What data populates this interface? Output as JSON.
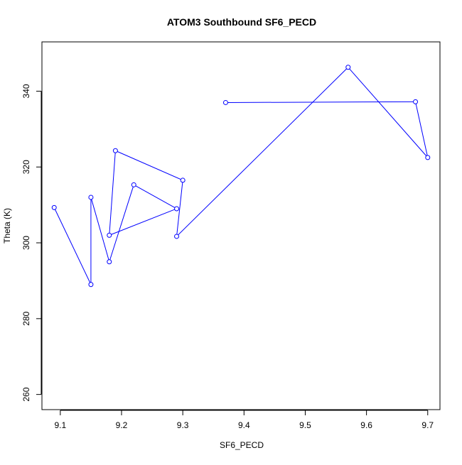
{
  "chart_data": {
    "type": "line",
    "title": "ATOM3 Southbound SF6_PECD",
    "xlabel": "SF6_PECD",
    "ylabel": "Theta (K)",
    "xlim": [
      9.07,
      9.72
    ],
    "ylim": [
      256,
      353
    ],
    "xticks": [
      9.1,
      9.2,
      9.3,
      9.4,
      9.5,
      9.6,
      9.7
    ],
    "xtick_labels": [
      "9.1",
      "9.2",
      "9.3",
      "9.4",
      "9.5",
      "9.6",
      "9.7"
    ],
    "yticks": [
      260,
      280,
      300,
      320,
      340
    ],
    "ytick_labels": [
      "260",
      "280",
      "300",
      "320",
      "340"
    ],
    "grid": false,
    "legend": "none",
    "series": [
      {
        "color": "#0000ff",
        "marker": "open-circle",
        "points": [
          {
            "x": 9.09,
            "y": 309.3
          },
          {
            "x": 9.15,
            "y": 289.0
          },
          {
            "x": 9.15,
            "y": 312.0
          },
          {
            "x": 9.18,
            "y": 295.0
          },
          {
            "x": 9.22,
            "y": 315.3
          },
          {
            "x": 9.29,
            "y": 309.0
          },
          {
            "x": 9.18,
            "y": 302.0
          },
          {
            "x": 9.19,
            "y": 324.3
          },
          {
            "x": 9.3,
            "y": 316.5
          },
          {
            "x": 9.29,
            "y": 301.7
          },
          {
            "x": 9.57,
            "y": 346.3
          },
          {
            "x": 9.7,
            "y": 322.5
          },
          {
            "x": 9.68,
            "y": 337.2
          },
          {
            "x": 9.37,
            "y": 337.0
          }
        ]
      }
    ]
  }
}
